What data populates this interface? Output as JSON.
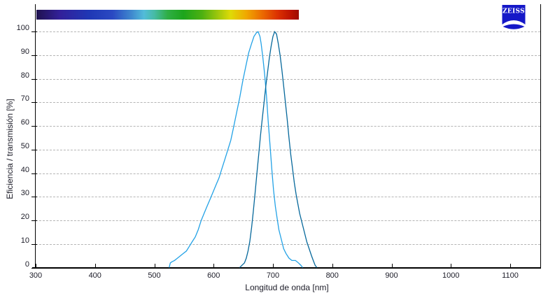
{
  "logo": {
    "text": "ZEISS",
    "color": "#1518C8"
  },
  "axes": {
    "x": {
      "label": "Longitud de onda [nm]",
      "min": 300,
      "max": 1150,
      "ticks": [
        300,
        400,
        500,
        600,
        700,
        800,
        900,
        1000,
        1100
      ]
    },
    "y": {
      "label": "Eficiencia / transmisión [%]",
      "min": 0,
      "max": 100,
      "ticks": [
        0,
        10,
        20,
        30,
        40,
        50,
        60,
        70,
        80,
        90,
        100
      ]
    }
  },
  "spectrum_bar": {
    "description": "visible-light-rainbow-colorbar",
    "wavelength_start_nm": 300,
    "wavelength_end_nm": 743,
    "gradient_stops": [
      [
        0,
        "#20124F"
      ],
      [
        9,
        "#32209A"
      ],
      [
        20,
        "#1F37B5"
      ],
      [
        29,
        "#2A49C2"
      ],
      [
        36,
        "#3E86CE"
      ],
      [
        41,
        "#52BCD9"
      ],
      [
        45,
        "#46BBA4"
      ],
      [
        50,
        "#2FAE45"
      ],
      [
        56,
        "#1CA51C"
      ],
      [
        63,
        "#4CB011"
      ],
      [
        69,
        "#9CC60C"
      ],
      [
        74,
        "#DFDA07"
      ],
      [
        80,
        "#F0A800"
      ],
      [
        86,
        "#EB6B00"
      ],
      [
        92,
        "#DB3000"
      ],
      [
        97,
        "#BC1200"
      ],
      [
        100,
        "#9C0C00"
      ]
    ]
  },
  "chart_data": {
    "type": "line",
    "title": "",
    "xlabel": "Longitud de onda [nm]",
    "ylabel": "Eficiencia / transmisión [%]",
    "xlim": [
      300,
      1150
    ],
    "ylim": [
      0,
      100
    ],
    "grid": "horizontal-dashed",
    "legend": "none",
    "series": [
      {
        "name": "excitation-spectrum",
        "color": "#23A2E6",
        "peak_nm": 675,
        "points": [
          [
            525,
            0
          ],
          [
            527,
            2
          ],
          [
            530,
            2.5
          ],
          [
            534,
            3
          ],
          [
            539,
            4
          ],
          [
            544,
            5
          ],
          [
            549,
            6
          ],
          [
            554,
            7
          ],
          [
            559,
            9
          ],
          [
            564,
            11
          ],
          [
            569,
            13
          ],
          [
            574,
            16
          ],
          [
            579,
            20
          ],
          [
            584,
            23
          ],
          [
            589,
            26
          ],
          [
            594,
            29
          ],
          [
            599,
            32
          ],
          [
            604,
            35
          ],
          [
            609,
            38
          ],
          [
            614,
            42
          ],
          [
            619,
            46
          ],
          [
            624,
            50
          ],
          [
            629,
            54
          ],
          [
            634,
            60
          ],
          [
            639,
            66
          ],
          [
            644,
            72
          ],
          [
            649,
            79
          ],
          [
            654,
            85
          ],
          [
            659,
            91
          ],
          [
            664,
            95
          ],
          [
            668,
            98
          ],
          [
            672,
            99.5
          ],
          [
            675,
            100
          ],
          [
            678,
            98
          ],
          [
            680,
            95
          ],
          [
            683,
            89
          ],
          [
            686,
            82
          ],
          [
            689,
            73
          ],
          [
            692,
            62
          ],
          [
            695,
            52
          ],
          [
            698,
            42
          ],
          [
            701,
            33
          ],
          [
            704,
            26
          ],
          [
            707,
            21
          ],
          [
            710,
            16
          ],
          [
            714,
            12
          ],
          [
            718,
            8
          ],
          [
            722,
            6
          ],
          [
            727,
            4
          ],
          [
            732,
            3
          ],
          [
            738,
            3
          ],
          [
            743,
            2
          ],
          [
            747,
            1
          ],
          [
            750,
            0
          ]
        ]
      },
      {
        "name": "emission-spectrum",
        "color": "#06689B",
        "peak_nm": 703,
        "points": [
          [
            644,
            0
          ],
          [
            648,
            1
          ],
          [
            652,
            2
          ],
          [
            655,
            4
          ],
          [
            658,
            7
          ],
          [
            661,
            11
          ],
          [
            664,
            17
          ],
          [
            667,
            24
          ],
          [
            670,
            32
          ],
          [
            673,
            40
          ],
          [
            676,
            48
          ],
          [
            679,
            56
          ],
          [
            682,
            63
          ],
          [
            685,
            70
          ],
          [
            688,
            77
          ],
          [
            691,
            83
          ],
          [
            694,
            89
          ],
          [
            697,
            94
          ],
          [
            700,
            98
          ],
          [
            703,
            100
          ],
          [
            706,
            99
          ],
          [
            709,
            95
          ],
          [
            712,
            90
          ],
          [
            715,
            84
          ],
          [
            718,
            77
          ],
          [
            721,
            70
          ],
          [
            724,
            63
          ],
          [
            727,
            55
          ],
          [
            730,
            48
          ],
          [
            733,
            42
          ],
          [
            736,
            36
          ],
          [
            739,
            31
          ],
          [
            742,
            27
          ],
          [
            745,
            23
          ],
          [
            749,
            19
          ],
          [
            753,
            15
          ],
          [
            757,
            11
          ],
          [
            761,
            8
          ],
          [
            765,
            5
          ],
          [
            768,
            3
          ],
          [
            771,
            1
          ],
          [
            774,
            0
          ]
        ]
      }
    ]
  }
}
